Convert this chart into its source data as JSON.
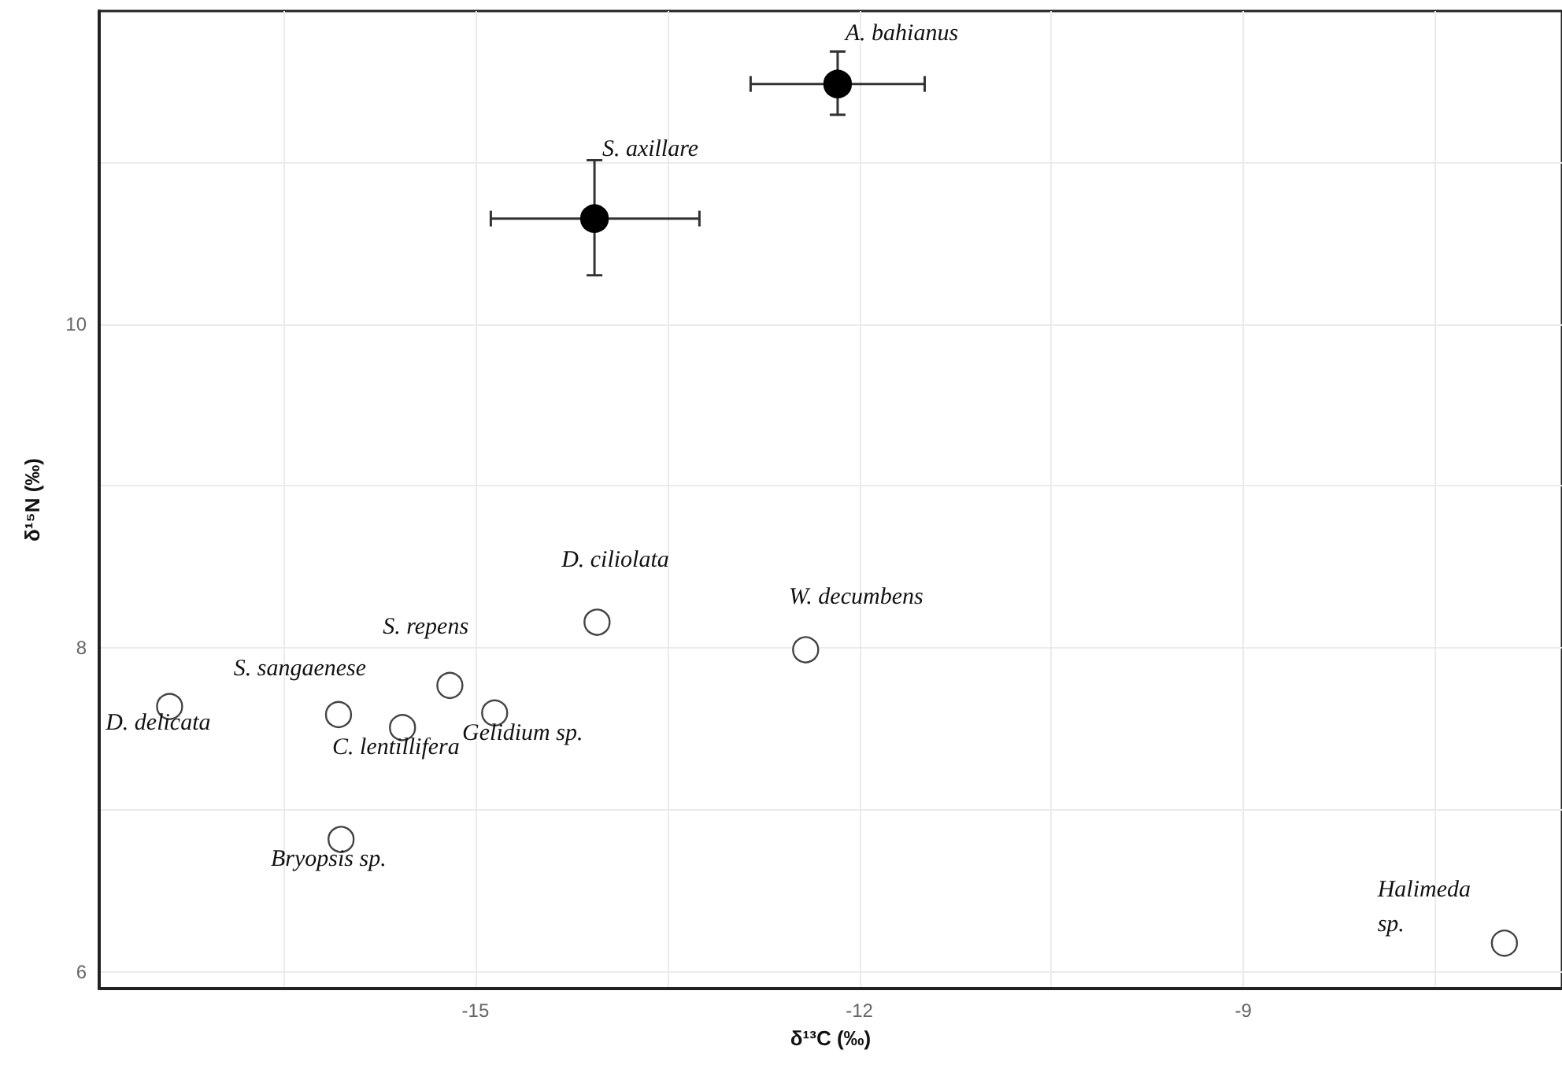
{
  "chart_data": {
    "type": "scatter",
    "xlabel": "δ¹³C (‰)",
    "ylabel": "δ¹⁵N (‰)",
    "xlim": [
      -17.94,
      -6.51
    ],
    "ylim": [
      5.9,
      11.93
    ],
    "xticks": [
      {
        "value": -16.5,
        "label": null
      },
      -15,
      {
        "value": -13.5,
        "label": null
      },
      -12,
      {
        "value": -10.5,
        "label": null
      },
      -9,
      {
        "value": -7.5,
        "label": null
      }
    ],
    "yticks": [
      6,
      {
        "value": 7,
        "label": null
      },
      8,
      {
        "value": 9,
        "label": null
      },
      10,
      {
        "value": 11,
        "label": null
      }
    ],
    "grid": true,
    "marker": "circle",
    "series": [
      {
        "color": "#000000",
        "x": [
          -12.17,
          -14.07
        ],
        "values": [
          11.48,
          10.65
        ],
        "errors": [
          [
            11.29,
            11.68
          ],
          [
            10.3,
            11.01
          ]
        ],
        "xerrors": [
          [
            -12.85,
            -11.49
          ],
          [
            -14.88,
            -13.25
          ]
        ],
        "value_labels": [
          "A. bahianus",
          "S. axillare"
        ]
      },
      {
        "color": "#ffffff",
        "x": [
          -17.39,
          -16.07,
          -15.57,
          -15.2,
          -14.85,
          -16.05,
          -14.05,
          -12.42,
          -6.96
        ],
        "values": [
          7.64,
          7.59,
          7.51,
          7.77,
          7.6,
          6.82,
          8.16,
          7.99,
          6.18
        ],
        "value_labels": [
          "D. delicata",
          "S. sangaenese",
          "C. lentillifera",
          "S. repens",
          "Gelidium sp.",
          "Bryopsis sp.",
          "D. ciliolata",
          "W. decumbens",
          "Halimeda sp."
        ]
      }
    ]
  }
}
